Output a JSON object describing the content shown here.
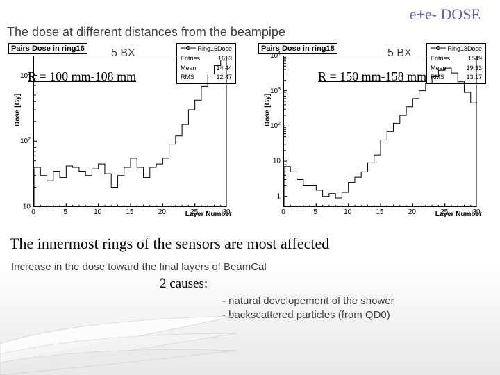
{
  "header": {
    "dose_label": "e+e- DOSE",
    "title": "The dose at different distances from the beampipe"
  },
  "left_chart": {
    "title": "Pairs Dose in ring16",
    "bx": "5 BX",
    "r_label": "R = 100 mm-108 mm",
    "stats": {
      "legend": "Ring16Dose",
      "entries_lbl": "Entries",
      "entries": "1613",
      "mean_lbl": "Mean",
      "mean": "14.44",
      "rms_lbl": "RMS",
      "rms": "12.47"
    },
    "type": "step-histogram",
    "ylabel": "Dose [Gy]",
    "xlabel": "Layer Number",
    "xlim": [
      0,
      30
    ],
    "xticks": [
      0,
      5,
      10,
      15,
      20,
      25,
      30
    ],
    "yscale": "log",
    "ylim": [
      10,
      2000
    ],
    "ylog_ticks": [
      10,
      100,
      1000
    ],
    "ylog_labels": [
      "10",
      "10^{2}",
      "10^{3}"
    ],
    "line_color": "#000000",
    "background_color": "#ffffff",
    "values": [
      40,
      30,
      25,
      35,
      28,
      42,
      40,
      35,
      30,
      38,
      45,
      32,
      20,
      30,
      40,
      55,
      40,
      28,
      40,
      45,
      55,
      90,
      120,
      180,
      300,
      420,
      680,
      1050,
      1400,
      1700
    ]
  },
  "right_chart": {
    "title": "Pairs Dose in ring18",
    "bx": "5 BX",
    "r_label": "R = 150 mm-158 mm",
    "stats": {
      "legend": "Ring18Dose",
      "entries_lbl": "Entries",
      "entries": "1549",
      "mean_lbl": "Mean",
      "mean": "19.33",
      "rms_lbl": "RMS",
      "rms": "13.17"
    },
    "type": "step-histogram",
    "ylabel": "Dose [Gy]",
    "xlabel": "Layer Number",
    "xlim": [
      0,
      30
    ],
    "xticks": [
      0,
      5,
      10,
      15,
      20,
      25,
      30
    ],
    "yscale": "log",
    "ylim": [
      0.5,
      10000
    ],
    "ylog_ticks": [
      1,
      10,
      100,
      1000,
      10000
    ],
    "ylog_labels": [
      "1",
      "10",
      "10^{2}",
      "10^{3}",
      "10^{4}"
    ],
    "line_color": "#000000",
    "background_color": "#ffffff",
    "values": [
      7,
      5,
      3,
      2,
      2,
      1.5,
      1,
      1.2,
      0.9,
      1.3,
      2.5,
      3.5,
      5,
      9,
      15,
      40,
      70,
      120,
      200,
      350,
      600,
      1000,
      1600,
      2500,
      3800,
      4400,
      3200,
      1800,
      900,
      450
    ]
  },
  "footer": {
    "main": "The innermost rings of the sensors are most affected",
    "increase": "Increase in the dose toward the final layers of BeamCal",
    "causes_label": "2 causes:",
    "cause1": "- natural developement of the shower",
    "cause2": "- backscattered particles (from QD0)"
  },
  "colors": {
    "purple": "#6a5acd",
    "text": "#404040"
  }
}
